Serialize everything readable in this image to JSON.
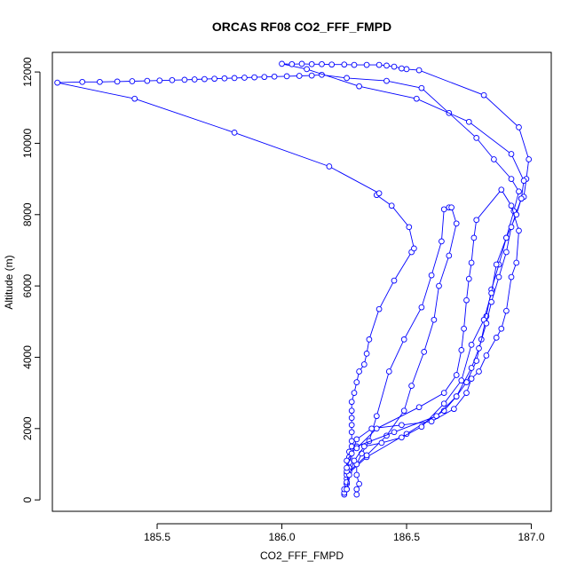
{
  "chart_data": {
    "type": "line",
    "title": "ORCAS RF08 CO2_FFF_FMPD",
    "xlabel": "CO2_FFF_FMPD",
    "ylabel": "Altitude (m)",
    "xlim": [
      185.08,
      187.08
    ],
    "ylim": [
      -320,
      12550
    ],
    "x_ticks": [
      185.5,
      186.0,
      186.5,
      187.0
    ],
    "x_tick_labels": [
      "185.5",
      "186.0",
      "186.5",
      "187.0"
    ],
    "y_ticks": [
      0,
      2000,
      4000,
      6000,
      8000,
      10000,
      12000
    ],
    "y_tick_labels": [
      "0",
      "2000",
      "4000",
      "6000",
      "8000",
      "10000",
      "12000"
    ],
    "grid": false,
    "marker": "open-circle",
    "color": "#0000ff",
    "series": [
      {
        "points": [
          [
            186.25,
            150
          ],
          [
            186.25,
            200
          ],
          [
            186.26,
            300
          ],
          [
            186.26,
            450
          ],
          [
            186.26,
            600
          ],
          [
            186.26,
            750
          ],
          [
            186.27,
            900
          ],
          [
            186.27,
            1050
          ],
          [
            186.27,
            1200
          ],
          [
            186.27,
            1350
          ],
          [
            186.28,
            1500
          ],
          [
            186.28,
            1650
          ],
          [
            186.28,
            1900
          ],
          [
            186.28,
            2100
          ],
          [
            186.28,
            2300
          ],
          [
            186.28,
            2500
          ],
          [
            186.28,
            2750
          ],
          [
            186.29,
            3000
          ],
          [
            186.3,
            3300
          ],
          [
            186.31,
            3600
          ],
          [
            186.33,
            3800
          ],
          [
            186.34,
            4100
          ],
          [
            186.35,
            4500
          ],
          [
            186.39,
            5350
          ],
          [
            186.45,
            6150
          ],
          [
            186.52,
            6950
          ],
          [
            186.53,
            7050
          ],
          [
            186.51,
            7650
          ],
          [
            186.44,
            8250
          ],
          [
            186.38,
            8550
          ],
          [
            186.39,
            8600
          ],
          [
            186.19,
            9350
          ],
          [
            185.81,
            10300
          ],
          [
            185.41,
            11250
          ],
          [
            185.1,
            11700
          ],
          [
            185.2,
            11720
          ],
          [
            185.27,
            11720
          ],
          [
            185.34,
            11730
          ],
          [
            185.4,
            11740
          ],
          [
            185.46,
            11750
          ],
          [
            185.51,
            11760
          ],
          [
            185.56,
            11770
          ],
          [
            185.61,
            11780
          ],
          [
            185.65,
            11790
          ],
          [
            185.69,
            11800
          ],
          [
            185.73,
            11810
          ],
          [
            185.77,
            11820
          ],
          [
            185.81,
            11830
          ],
          [
            185.85,
            11840
          ],
          [
            185.89,
            11850
          ],
          [
            185.93,
            11860
          ],
          [
            185.97,
            11870
          ],
          [
            186.02,
            11880
          ],
          [
            186.07,
            11890
          ],
          [
            186.12,
            11900
          ],
          [
            186.16,
            11920
          ],
          [
            186.26,
            11830
          ],
          [
            186.42,
            11750
          ],
          [
            186.56,
            11550
          ],
          [
            186.67,
            10850
          ],
          [
            186.78,
            10150
          ],
          [
            186.85,
            9550
          ],
          [
            186.92,
            9000
          ],
          [
            186.95,
            8650
          ],
          [
            186.93,
            8100
          ],
          [
            186.9,
            7350
          ],
          [
            186.87,
            6600
          ],
          [
            186.84,
            5900
          ],
          [
            186.82,
            5150
          ],
          [
            186.8,
            4500
          ],
          [
            186.78,
            3900
          ],
          [
            186.74,
            3300
          ],
          [
            186.7,
            2900
          ],
          [
            186.65,
            2500
          ],
          [
            186.5,
            1850
          ],
          [
            186.34,
            1200
          ],
          [
            186.26,
            700
          ],
          [
            186.26,
            450
          ],
          [
            186.25,
            300
          ]
        ]
      },
      {
        "points": [
          [
            186.3,
            150
          ],
          [
            186.3,
            300
          ],
          [
            186.31,
            450
          ],
          [
            186.3,
            700
          ],
          [
            186.3,
            1000
          ],
          [
            186.32,
            1300
          ],
          [
            186.35,
            1650
          ],
          [
            186.38,
            2350
          ],
          [
            186.43,
            3600
          ],
          [
            186.49,
            4500
          ],
          [
            186.56,
            5400
          ],
          [
            186.6,
            6300
          ],
          [
            186.64,
            7250
          ],
          [
            186.65,
            8150
          ],
          [
            186.67,
            8200
          ],
          [
            186.68,
            8200
          ],
          [
            186.7,
            7750
          ],
          [
            186.67,
            6850
          ],
          [
            186.63,
            6000
          ],
          [
            186.61,
            5050
          ],
          [
            186.57,
            4150
          ],
          [
            186.52,
            3200
          ],
          [
            186.49,
            2500
          ],
          [
            186.42,
            1800
          ],
          [
            186.34,
            1250
          ],
          [
            186.27,
            800
          ],
          [
            186.26,
            500
          ]
        ]
      },
      {
        "points": [
          [
            186.26,
            300
          ],
          [
            186.27,
            700
          ],
          [
            186.29,
            1100
          ],
          [
            186.33,
            1500
          ],
          [
            186.4,
            1600
          ],
          [
            186.48,
            1750
          ],
          [
            186.56,
            2050
          ],
          [
            186.65,
            2700
          ],
          [
            186.72,
            3350
          ],
          [
            186.76,
            4350
          ],
          [
            186.81,
            5050
          ],
          [
            186.84,
            5800
          ],
          [
            186.86,
            6600
          ],
          [
            186.9,
            7350
          ],
          [
            186.94,
            8000
          ],
          [
            186.96,
            8450
          ],
          [
            186.97,
            8500
          ],
          [
            186.98,
            9000
          ],
          [
            186.99,
            9550
          ],
          [
            186.95,
            10450
          ],
          [
            186.81,
            11350
          ],
          [
            186.55,
            12050
          ],
          [
            186.5,
            12080
          ],
          [
            186.48,
            12100
          ],
          [
            186.45,
            12150
          ],
          [
            186.42,
            12180
          ],
          [
            186.39,
            12200
          ],
          [
            186.34,
            12200
          ],
          [
            186.29,
            12200
          ],
          [
            186.25,
            12210
          ],
          [
            186.2,
            12210
          ],
          [
            186.16,
            12220
          ],
          [
            186.12,
            12220
          ],
          [
            186.08,
            12230
          ],
          [
            186.04,
            12220
          ],
          [
            186.0,
            12230
          ],
          [
            186.1,
            12080
          ],
          [
            186.31,
            11600
          ],
          [
            186.54,
            11250
          ],
          [
            186.75,
            10600
          ],
          [
            186.92,
            9700
          ],
          [
            186.97,
            8950
          ],
          [
            186.96,
            8450
          ],
          [
            186.92,
            7650
          ],
          [
            186.9,
            6950
          ],
          [
            186.87,
            6250
          ],
          [
            186.84,
            5550
          ],
          [
            186.82,
            4950
          ],
          [
            186.79,
            4250
          ],
          [
            186.76,
            3700
          ],
          [
            186.7,
            2900
          ],
          [
            186.62,
            2350
          ],
          [
            186.45,
            1900
          ],
          [
            186.3,
            1500
          ],
          [
            186.26,
            1100
          ],
          [
            186.26,
            800
          ]
        ]
      },
      {
        "points": [
          [
            186.26,
            900
          ],
          [
            186.28,
            1300
          ],
          [
            186.3,
            1700
          ],
          [
            186.36,
            2000
          ],
          [
            186.48,
            2100
          ],
          [
            186.6,
            2200
          ],
          [
            186.69,
            2550
          ],
          [
            186.74,
            3000
          ],
          [
            186.76,
            3400
          ],
          [
            186.79,
            3600
          ],
          [
            186.82,
            4050
          ],
          [
            186.86,
            4550
          ],
          [
            186.88,
            4800
          ],
          [
            186.9,
            5300
          ],
          [
            186.92,
            6250
          ],
          [
            186.94,
            6650
          ],
          [
            186.95,
            7550
          ],
          [
            186.92,
            8250
          ],
          [
            186.88,
            8700
          ],
          [
            186.78,
            7850
          ],
          [
            186.77,
            7350
          ],
          [
            186.76,
            6650
          ],
          [
            186.75,
            6200
          ],
          [
            186.74,
            5600
          ],
          [
            186.73,
            4800
          ],
          [
            186.72,
            4200
          ],
          [
            186.7,
            3500
          ],
          [
            186.65,
            3000
          ],
          [
            186.55,
            2600
          ],
          [
            186.38,
            2000
          ],
          [
            186.3,
            1450
          ]
        ]
      }
    ]
  }
}
